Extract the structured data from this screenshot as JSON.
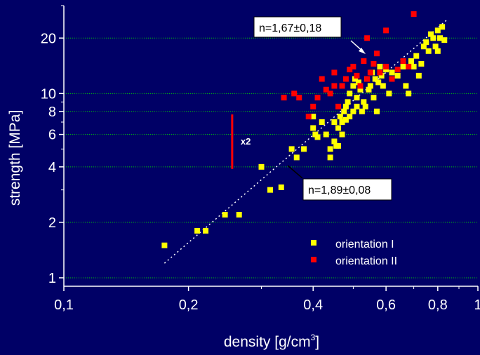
{
  "chart_data": {
    "type": "scatter",
    "title": "",
    "xlabel": "density [g/cm",
    "xlabel_sup": "3",
    "xlabel_end": "]",
    "ylabel": "strength [MPa]",
    "xscale": "log",
    "yscale": "log",
    "xlim": [
      0.1,
      1.0
    ],
    "ylim": [
      0.9,
      30
    ],
    "x_ticks": [
      {
        "value": 0.1,
        "label": "0,1"
      },
      {
        "value": 0.2,
        "label": "0,2"
      },
      {
        "value": 0.4,
        "label": "0,4"
      },
      {
        "value": 0.6,
        "label": "0,6"
      },
      {
        "value": 0.8,
        "label": "0,8"
      },
      {
        "value": 1.0,
        "label": "1"
      }
    ],
    "y_ticks": [
      {
        "value": 1,
        "label": "1"
      },
      {
        "value": 2,
        "label": "2"
      },
      {
        "value": 4,
        "label": "4"
      },
      {
        "value": 6,
        "label": "6"
      },
      {
        "value": 8,
        "label": "8"
      },
      {
        "value": 10,
        "label": "10"
      },
      {
        "value": 20,
        "label": "20"
      }
    ],
    "grid": "horizontal",
    "legend_position": "bottom-right",
    "series": [
      {
        "name": "orientation I",
        "color": "#ffff00",
        "points": [
          [
            0.175,
            1.5
          ],
          [
            0.21,
            1.8
          ],
          [
            0.22,
            1.8
          ],
          [
            0.245,
            2.2
          ],
          [
            0.265,
            2.2
          ],
          [
            0.3,
            4.0
          ],
          [
            0.315,
            3.0
          ],
          [
            0.335,
            3.1
          ],
          [
            0.355,
            5.0
          ],
          [
            0.365,
            4.5
          ],
          [
            0.38,
            5.0
          ],
          [
            0.4,
            7.5
          ],
          [
            0.4,
            6.5
          ],
          [
            0.405,
            6.0
          ],
          [
            0.41,
            5.8
          ],
          [
            0.42,
            7.0
          ],
          [
            0.43,
            6.0
          ],
          [
            0.44,
            5.0
          ],
          [
            0.44,
            4.5
          ],
          [
            0.45,
            5.5
          ],
          [
            0.455,
            5.2
          ],
          [
            0.46,
            5.2
          ],
          [
            0.45,
            7.0
          ],
          [
            0.46,
            6.5
          ],
          [
            0.465,
            7.5
          ],
          [
            0.47,
            7.0
          ],
          [
            0.47,
            6.0
          ],
          [
            0.475,
            8.0
          ],
          [
            0.48,
            7.2
          ],
          [
            0.48,
            8.5
          ],
          [
            0.485,
            9.0
          ],
          [
            0.49,
            7.5
          ],
          [
            0.49,
            10.0
          ],
          [
            0.5,
            11.0
          ],
          [
            0.5,
            8.0
          ],
          [
            0.505,
            12.0
          ],
          [
            0.51,
            9.5
          ],
          [
            0.51,
            8.5
          ],
          [
            0.515,
            11.5
          ],
          [
            0.52,
            10.5
          ],
          [
            0.525,
            8.0
          ],
          [
            0.53,
            9.0
          ],
          [
            0.535,
            8.5
          ],
          [
            0.54,
            12.0
          ],
          [
            0.545,
            10.5
          ],
          [
            0.55,
            11.0
          ],
          [
            0.555,
            13.0
          ],
          [
            0.56,
            9.5
          ],
          [
            0.565,
            12.0
          ],
          [
            0.57,
            8.0
          ],
          [
            0.575,
            11.5
          ],
          [
            0.58,
            14.0
          ],
          [
            0.585,
            12.5
          ],
          [
            0.59,
            11.0
          ],
          [
            0.6,
            13.5
          ],
          [
            0.61,
            10.0
          ],
          [
            0.62,
            13.0
          ],
          [
            0.64,
            12.5
          ],
          [
            0.66,
            14.0
          ],
          [
            0.67,
            11.0
          ],
          [
            0.68,
            10.0
          ],
          [
            0.69,
            15.0
          ],
          [
            0.7,
            14.0
          ],
          [
            0.71,
            16.0
          ],
          [
            0.72,
            12.5
          ],
          [
            0.73,
            14.5
          ],
          [
            0.74,
            18.0
          ],
          [
            0.75,
            19.0
          ],
          [
            0.76,
            17.0
          ],
          [
            0.77,
            21.0
          ],
          [
            0.78,
            20.0
          ],
          [
            0.79,
            18.0
          ],
          [
            0.8,
            22.0
          ],
          [
            0.81,
            20.0
          ],
          [
            0.82,
            23.0
          ],
          [
            0.8,
            17.0
          ],
          [
            0.83,
            19.5
          ]
        ]
      },
      {
        "name": "orientation II",
        "color": "#ff0000",
        "points": [
          [
            0.34,
            9.5
          ],
          [
            0.36,
            10.0
          ],
          [
            0.37,
            9.5
          ],
          [
            0.39,
            7.5
          ],
          [
            0.4,
            8.5
          ],
          [
            0.41,
            9.5
          ],
          [
            0.42,
            12.0
          ],
          [
            0.43,
            10.5
          ],
          [
            0.44,
            10.0
          ],
          [
            0.45,
            11.0
          ],
          [
            0.45,
            13.0
          ],
          [
            0.46,
            8.5
          ],
          [
            0.47,
            11.0
          ],
          [
            0.48,
            12.0
          ],
          [
            0.49,
            13.5
          ],
          [
            0.5,
            14.0
          ],
          [
            0.51,
            12.5
          ],
          [
            0.52,
            11.0
          ],
          [
            0.53,
            15.0
          ],
          [
            0.54,
            12.0
          ],
          [
            0.55,
            13.0
          ],
          [
            0.56,
            14.5
          ],
          [
            0.58,
            13.0
          ],
          [
            0.6,
            14.0
          ],
          [
            0.62,
            12.0
          ],
          [
            0.64,
            13.5
          ],
          [
            0.66,
            15.0
          ],
          [
            0.68,
            14.0
          ],
          [
            0.54,
            20.0
          ],
          [
            0.57,
            16.5
          ],
          [
            0.6,
            22.0
          ],
          [
            0.7,
            27.0
          ]
        ]
      }
    ],
    "fit_lines": [
      {
        "from": [
          0.175,
          1.2
        ],
        "to": [
          0.84,
          25.0
        ],
        "color": "#ffffff"
      }
    ],
    "annotations": {
      "fit_top": "n=1,67±0,18",
      "fit_bottom": "n=1,89±0,08",
      "factor": "x2",
      "factor_bar": {
        "x": 0.255,
        "y_from": 3.9,
        "y_to": 7.7
      }
    }
  }
}
